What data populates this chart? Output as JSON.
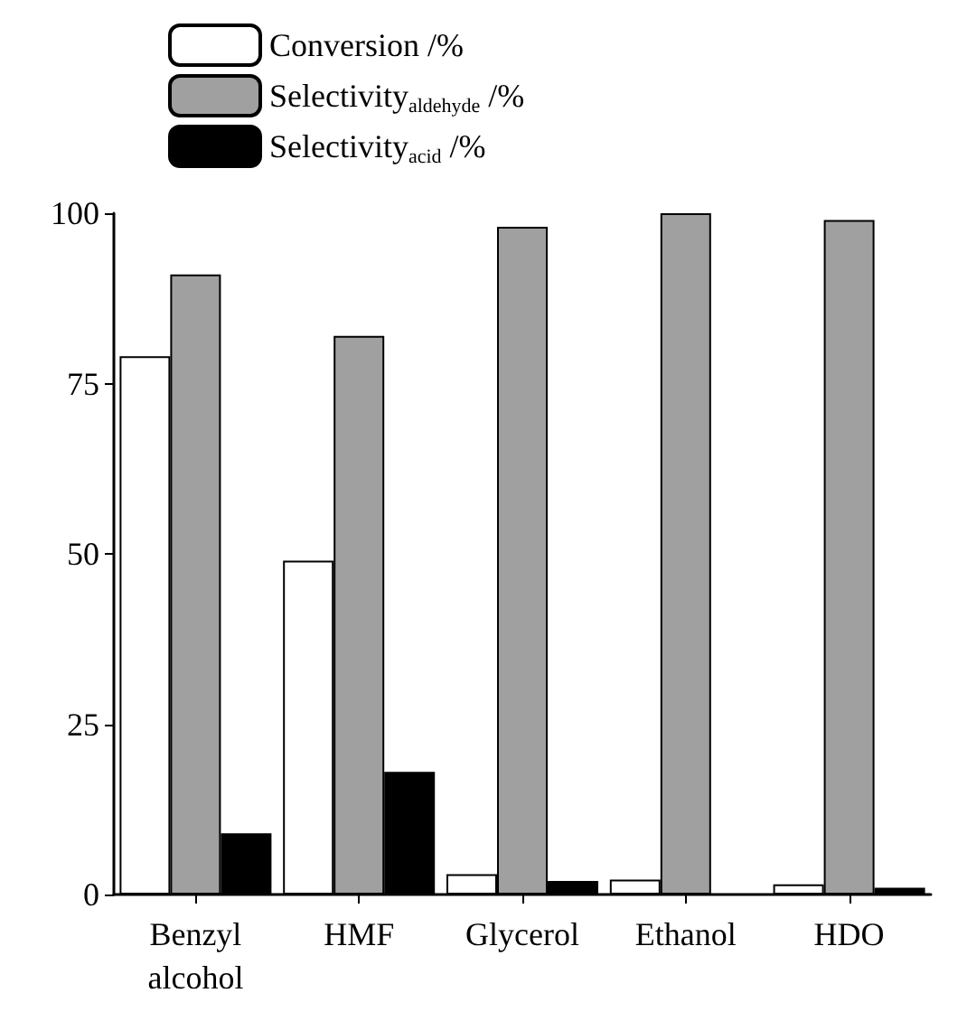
{
  "chart_data": {
    "type": "bar",
    "categories": [
      "Benzyl\nalcohol",
      "HMF",
      "Glycerol",
      "Ethanol",
      "HDO"
    ],
    "series": [
      {
        "name": "Conversion /%",
        "color": "#ffffff",
        "values": [
          79,
          49,
          3,
          2.2,
          1.5
        ]
      },
      {
        "name": "Selectivity$_{aldehyde}$ /%",
        "color": "#a0a0a0",
        "values": [
          91,
          82,
          98,
          100,
          99
        ]
      },
      {
        "name": "Selectivity$_{acid}$ /%",
        "color": "#000000",
        "values": [
          9,
          18,
          2,
          0,
          1
        ]
      }
    ],
    "ylim": [
      0,
      100
    ],
    "yticks": [
      0,
      25,
      50,
      75,
      100
    ],
    "grid": false,
    "legend": "top left"
  }
}
